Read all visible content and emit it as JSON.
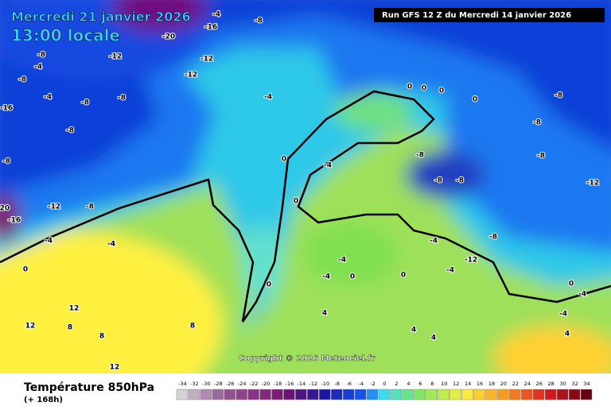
{
  "header": {
    "date": "Mercredi 21 janvier 2026",
    "time": "13:00 locale",
    "run": "Run GFS 12 Z du Mercredi 14 janvier 2026"
  },
  "copyright": "Copyright © 2026 Meteociel.fr",
  "legend": {
    "title": "Température 850hPa",
    "lead": "(+ 168h)",
    "ticks": [
      -34,
      -32,
      -30,
      -28,
      -26,
      -24,
      -22,
      -20,
      -18,
      -16,
      -14,
      -12,
      -10,
      -8,
      -6,
      -4,
      -2,
      0,
      2,
      4,
      6,
      8,
      10,
      12,
      14,
      16,
      18,
      20,
      22,
      24,
      26,
      28,
      30,
      32,
      34
    ]
  },
  "map_labels": [
    -4,
    -8,
    -16,
    -20,
    -12,
    -12,
    -8,
    -4,
    -8,
    -12,
    -4,
    -8,
    -8,
    -4,
    -16,
    -8,
    -8,
    -12,
    -8,
    -20,
    -16,
    -4,
    -4,
    0,
    0,
    0,
    0,
    -4,
    0,
    0,
    0,
    0,
    -8,
    -8,
    -8,
    -8,
    -8,
    -8,
    -12,
    -8,
    -12,
    -4,
    -4,
    -4,
    0,
    0,
    -4,
    8,
    12,
    12,
    12,
    8,
    8,
    4,
    4,
    4,
    -4,
    0,
    -4,
    4
  ]
}
